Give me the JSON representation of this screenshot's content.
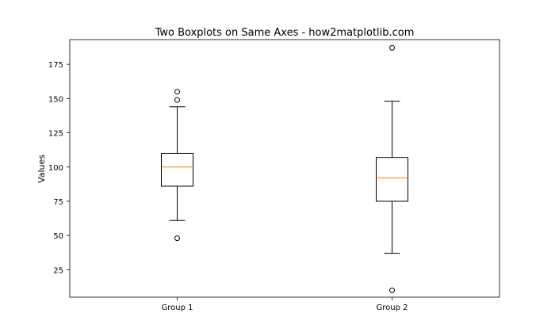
{
  "chart_data": {
    "type": "boxplot",
    "title": "Two Boxplots on Same Axes - how2matplotlib.com",
    "xlabel": "",
    "ylabel": "Values",
    "categories": [
      "Group 1",
      "Group 2"
    ],
    "ylim": [
      5,
      193
    ],
    "yticks": [
      25,
      50,
      75,
      100,
      125,
      150,
      175
    ],
    "grid": false,
    "boxes": [
      {
        "label": "Group 1",
        "whisker_low": 61,
        "q1": 86,
        "median": 100,
        "q3": 110,
        "whisker_high": 144,
        "outliers": [
          48,
          149,
          155
        ]
      },
      {
        "label": "Group 2",
        "whisker_low": 37,
        "q1": 75,
        "median": 92,
        "q3": 107,
        "whisker_high": 148,
        "outliers": [
          10,
          187
        ]
      }
    ],
    "colors": {
      "box": "#000000",
      "median": "#ff7f0e",
      "background": "#ffffff"
    }
  }
}
